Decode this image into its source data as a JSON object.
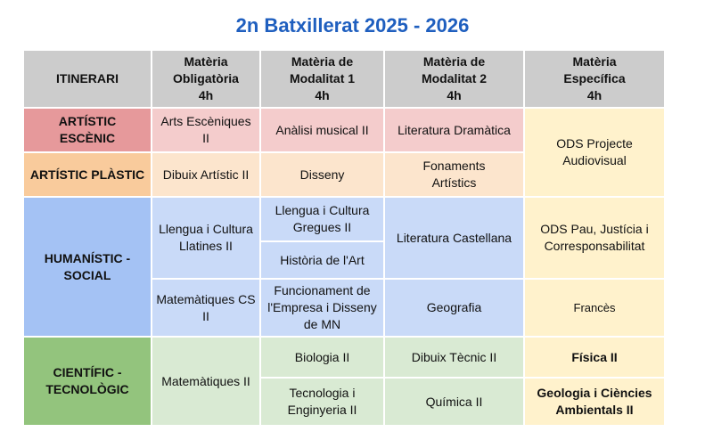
{
  "title": "2n Batxillerat 2025 - 2026",
  "headers": {
    "itinerari": "ITINERARI",
    "obligatoria": "Matèria\nObligatòria\n4h",
    "modalitat1": "Matèria de\nModalitat 1\n4h",
    "modalitat2": "Matèria de\nModalitat 2\n4h",
    "especifica": "Matèria\nEspecífica\n4h"
  },
  "escenic": {
    "itinerari": "ARTÍSTIC\nESCÈNIC",
    "obligatoria": "Arts Escèniques\nII",
    "modalitat1": "Anàlisi musical II",
    "modalitat2": "Literatura Dramàtica"
  },
  "plastic": {
    "itinerari": "ARTÍSTIC PLÀSTIC",
    "obligatoria": "Dibuix Artístic II",
    "modalitat1": "Disseny",
    "modalitat2": "Fonaments\nArtístics"
  },
  "artistic_especifica": "ODS Projecte\nAudiovisual",
  "humanistic": {
    "itinerari": "HUMANÍSTIC -\nSOCIAL",
    "obligatoria_1": "Llengua i Cultura\nLlatines II",
    "obligatoria_2": "Matemàtiques CS\nII",
    "modalitat1_1": "Llengua i Cultura\nGregues II",
    "modalitat1_2": "Història de l'Art",
    "modalitat1_3": "Funcionament de\nl'Empresa i Disseny\nde MN",
    "modalitat2_1": "Literatura Castellana",
    "modalitat2_2": "Geografia",
    "especifica_1": "ODS Pau, Justícia i\nCorresponsabilitat",
    "especifica_2": "Francès"
  },
  "cientific": {
    "itinerari": "CIENTÍFIC -\nTECNOLÒGIC",
    "obligatoria": "Matemàtiques II",
    "modalitat1_1": "Biologia II",
    "modalitat1_2": "Tecnologia i\nEnginyeria II",
    "modalitat2_1": "Dibuix Tècnic II",
    "modalitat2_2": "Química II",
    "especifica_1": "Física II",
    "especifica_2": "Geologia i Ciències\nAmbientals II"
  },
  "colors": {
    "title": "#1f5fbf",
    "header": "#cccccc",
    "escenic": "#e6999b",
    "escenic_light": "#f4cccc",
    "plastic": "#f9cb9c",
    "plastic_light": "#fce5cd",
    "humanistic": "#a4c2f4",
    "humanistic_light": "#c9daf8",
    "cientific": "#93c47d",
    "cientific_light": "#d9ead3",
    "especifica": "#fff2cc"
  }
}
